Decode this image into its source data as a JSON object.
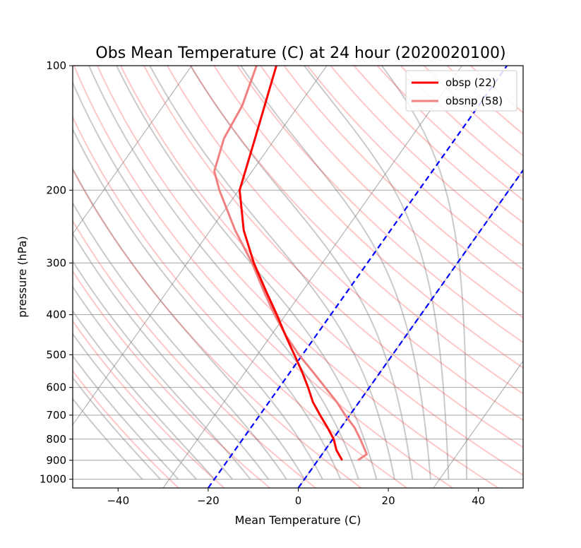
{
  "chart_data": {
    "type": "line",
    "title": "Obs Mean Temperature (C) at 24 hour (2020020100)",
    "xlabel": "Mean Temperature (C)",
    "ylabel": "pressure (hPa)",
    "xlim": [
      -50,
      50
    ],
    "ylim": [
      1050,
      100
    ],
    "y_scale": "log",
    "skew_t": true,
    "grid": true,
    "xticks": [
      -40,
      -20,
      0,
      20,
      40
    ],
    "yticks": [
      1000,
      900,
      800,
      700,
      600,
      500,
      400,
      300,
      200,
      100
    ],
    "legend_position": "top-right",
    "series": [
      {
        "name": "obsp (22)",
        "color": "#ff0000",
        "pressure": [
          900,
          850,
          800,
          750,
          700,
          650,
          600,
          550,
          500,
          450,
          400,
          350,
          300,
          250,
          200,
          150,
          100
        ],
        "temperature": [
          5.4,
          2.5,
          0.2,
          -3.0,
          -6.6,
          -10.3,
          -13.6,
          -17.4,
          -21.8,
          -26.7,
          -32.0,
          -38.2,
          -45.2,
          -52.6,
          -59.8,
          -64.5,
          -71.2
        ]
      },
      {
        "name": "obsnp (58)",
        "color": "#f08080",
        "pressure": [
          900,
          870,
          800,
          750,
          700,
          650,
          600,
          550,
          500,
          450,
          400,
          350,
          300,
          250,
          200,
          180,
          150,
          125,
          100
        ],
        "temperature": [
          8.9,
          9.9,
          6.1,
          3.0,
          -1.0,
          -5.0,
          -9.8,
          -15.0,
          -20.8,
          -26.6,
          -32.5,
          -38.7,
          -45.6,
          -54.5,
          -64.3,
          -68.4,
          -71.4,
          -72.5,
          -75.6
        ]
      }
    ],
    "reference_lines": {
      "dashed_blue_at_1000hPa": [
        -20,
        0
      ],
      "isotherm_color": "#808080",
      "dry_adiabat_color": "#ff0000",
      "moist_adiabat_color": "#4f4f4f"
    }
  }
}
